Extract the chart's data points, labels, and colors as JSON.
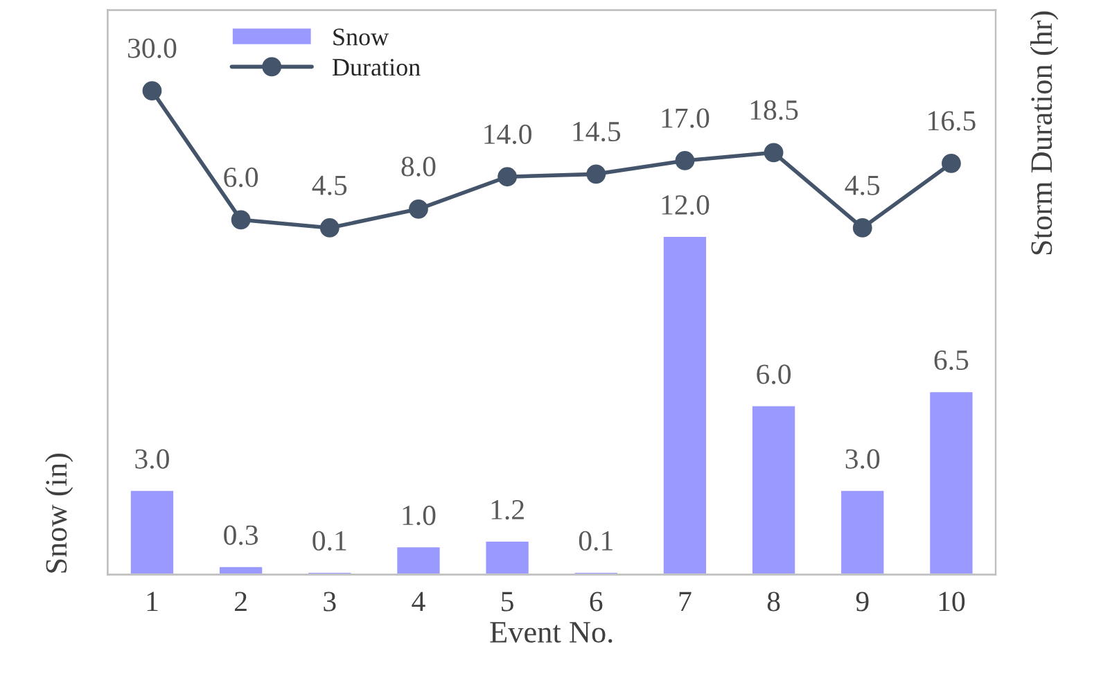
{
  "chart_data": {
    "type": "bar",
    "xlabel": "Event No.",
    "ylabel": "Snow (in)",
    "y2label": "Storm Duration (hr)",
    "categories": [
      "1",
      "2",
      "3",
      "4",
      "5",
      "6",
      "7",
      "8",
      "9",
      "10"
    ],
    "ylim": [
      0,
      20
    ],
    "y2lim": [
      -60,
      45
    ],
    "series": [
      {
        "name": "Snow",
        "color": "#9999ff",
        "values": [
          3.0,
          0.3,
          0.1,
          1.0,
          1.2,
          0.1,
          12.0,
          6.0,
          3.0,
          6.5
        ],
        "value_labels": [
          "3.0",
          "0.3",
          "0.1",
          "1.0",
          "1.2",
          "0.1",
          "12.0",
          "6.0",
          "3.0",
          "6.5"
        ]
      },
      {
        "name": "Duration",
        "type": "line",
        "axis": "y2",
        "color": "#44546a",
        "marker": "circle",
        "values": [
          30.0,
          6.0,
          4.5,
          8.0,
          14.0,
          14.5,
          17.0,
          18.5,
          4.5,
          16.5
        ],
        "value_labels": [
          "30.0",
          "6.0",
          "4.5",
          "8.0",
          "14.0",
          "14.5",
          "17.0",
          "18.5",
          "4.5",
          "16.5"
        ]
      }
    ],
    "legend": "top left",
    "tick_labels": "x"
  }
}
